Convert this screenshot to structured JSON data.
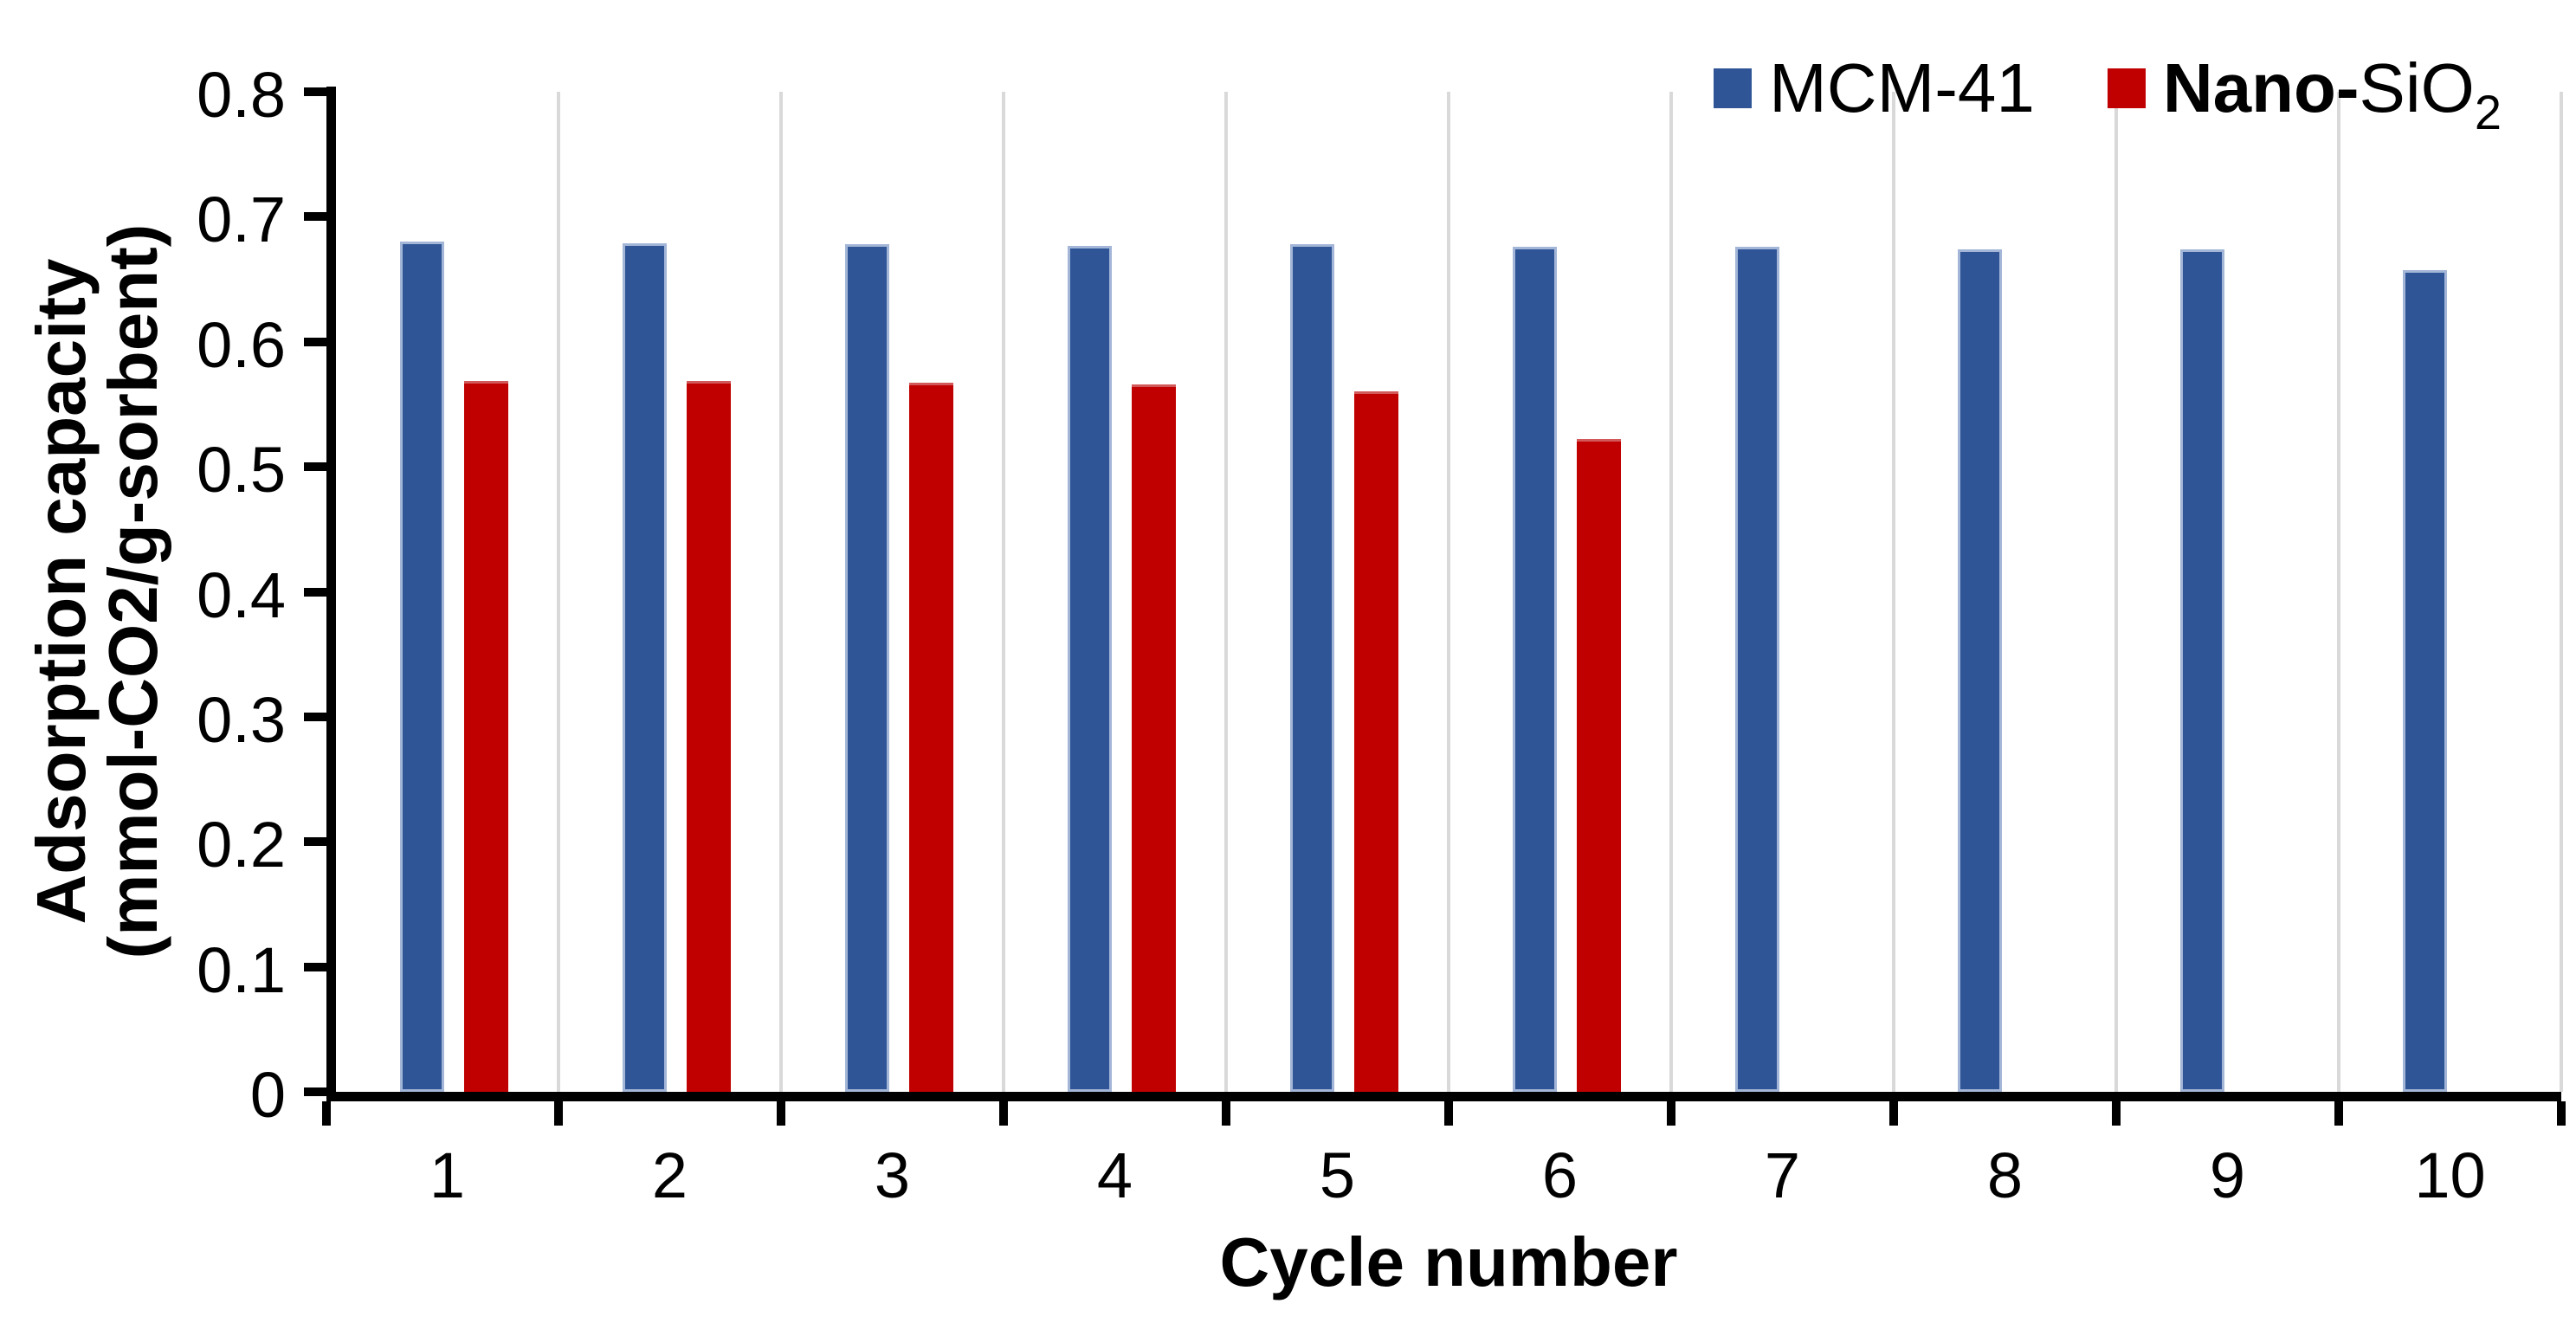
{
  "figure": {
    "background": "#FFFFFF",
    "axis_color": "#000000",
    "gridline_color": "#D9D9D9"
  },
  "chart_data": {
    "type": "bar",
    "title": "",
    "xlabel": "Cycle number",
    "ylabel_lines": [
      "Adsorption capacity",
      "(mmol-CO2/g-sorbent)"
    ],
    "categories": [
      "1",
      "2",
      "3",
      "4",
      "5",
      "6",
      "7",
      "8",
      "9",
      "10"
    ],
    "series": [
      {
        "name": "MCM-41",
        "color": "#2F5597",
        "edge_color": "#A3B6D7",
        "label_parts": [
          {
            "text": "MCM-41",
            "bold": false,
            "subscript": false
          }
        ],
        "values": [
          0.68,
          0.679,
          0.678,
          0.677,
          0.678,
          0.676,
          0.676,
          0.674,
          0.674,
          0.657
        ]
      },
      {
        "name": "Nano-SiO2",
        "color": "#C00000",
        "edge_color": "#D25959",
        "label_parts": [
          {
            "text": "Nano-",
            "bold": true,
            "subscript": false
          },
          {
            "text": "SiO",
            "bold": false,
            "subscript": false
          },
          {
            "text": "2",
            "bold": false,
            "subscript": true
          }
        ],
        "values": [
          0.569,
          0.569,
          0.567,
          0.566,
          0.56,
          0.522,
          null,
          null,
          null,
          null
        ]
      }
    ],
    "y_ticks": [
      "0",
      "0.1",
      "0.2",
      "0.3",
      "0.4",
      "0.5",
      "0.6",
      "0.7",
      "0.8"
    ],
    "ylim": [
      0,
      0.8
    ],
    "grid": "vertical lines at category boundaries",
    "legend_position": "top-right"
  }
}
